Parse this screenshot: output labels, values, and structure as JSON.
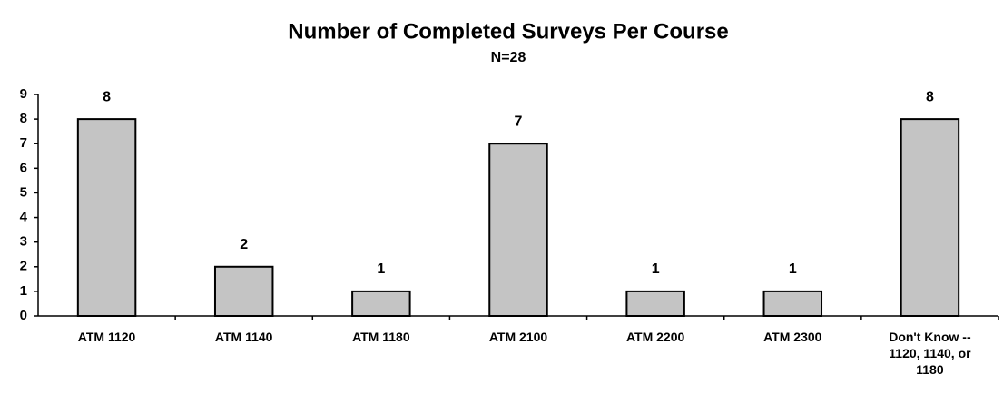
{
  "chart_data": {
    "type": "bar",
    "title": "Number of Completed Surveys Per Course",
    "subtitle": "N=28",
    "categories": [
      "ATM 1120",
      "ATM 1140",
      "ATM 1180",
      "ATM 2100",
      "ATM 2200",
      "ATM 2300",
      "Don't Know -- 1120, 1140, or 1180"
    ],
    "values": [
      8,
      2,
      1,
      7,
      1,
      1,
      8
    ],
    "color": "#c4c4c4",
    "ylim": [
      0,
      9
    ],
    "yticks": [
      0,
      1,
      2,
      3,
      4,
      5,
      6,
      7,
      8,
      9
    ],
    "grid": false
  }
}
